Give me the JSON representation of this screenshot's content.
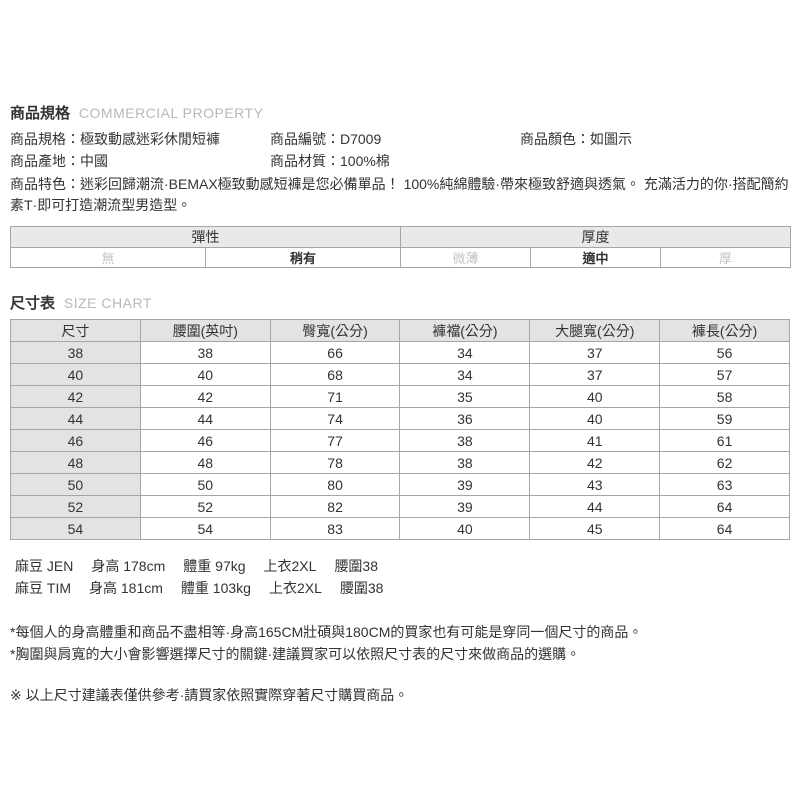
{
  "colon": "：",
  "product_section": {
    "title": "商品規格",
    "subtitle": "COMMERCIAL PROPERTY",
    "fields": {
      "spec": {
        "label": "商品規格",
        "value": "極致動感迷彩休閒短褲"
      },
      "code": {
        "label": "商品編號",
        "value": "D7009"
      },
      "color": {
        "label": "商品顏色",
        "value": "如圖示"
      },
      "origin": {
        "label": "商品產地",
        "value": "中國"
      },
      "material": {
        "label": "商品材質",
        "value": "100%棉"
      }
    },
    "feature": {
      "label": "商品特色",
      "value": "迷彩回歸潮流·BEMAX極致動感短褲是您必備單品！ 100%純綿體驗·帶來極致舒適與透氣。 充滿活力的你·搭配簡約素T·即可打造潮流型男造型。"
    }
  },
  "attribute_table": {
    "elasticity": {
      "header": "彈性",
      "options": [
        {
          "label": "無",
          "active": false
        },
        {
          "label": "稍有",
          "active": true
        }
      ]
    },
    "thickness": {
      "header": "厚度",
      "options": [
        {
          "label": "微薄",
          "active": false
        },
        {
          "label": "適中",
          "active": true
        },
        {
          "label": "厚",
          "active": false
        }
      ]
    }
  },
  "size_chart": {
    "title": "尺寸表",
    "subtitle": "SIZE CHART",
    "headers": [
      "尺寸",
      "腰圍(英吋)",
      "臀寬(公分)",
      "褲襠(公分)",
      "大腿寬(公分)",
      "褲長(公分)"
    ],
    "rows": [
      [
        "38",
        "38",
        "66",
        "34",
        "37",
        "56"
      ],
      [
        "40",
        "40",
        "68",
        "34",
        "37",
        "57"
      ],
      [
        "42",
        "42",
        "71",
        "35",
        "40",
        "58"
      ],
      [
        "44",
        "44",
        "74",
        "36",
        "40",
        "59"
      ],
      [
        "46",
        "46",
        "77",
        "38",
        "41",
        "61"
      ],
      [
        "48",
        "48",
        "78",
        "38",
        "42",
        "62"
      ],
      [
        "50",
        "50",
        "80",
        "39",
        "43",
        "63"
      ],
      [
        "52",
        "52",
        "82",
        "39",
        "44",
        "64"
      ],
      [
        "54",
        "54",
        "83",
        "40",
        "45",
        "64"
      ]
    ]
  },
  "models": [
    {
      "name": "麻豆 JEN",
      "height": "身高 178cm",
      "weight": "體重 97kg",
      "top": "上衣2XL",
      "waist": "腰圍38"
    },
    {
      "name": "麻豆 TIM",
      "height": "身高 181cm",
      "weight": "體重 103kg",
      "top": "上衣2XL",
      "waist": "腰圍38"
    }
  ],
  "notes": [
    "*每個人的身高體重和商品不盡相等·身高165CM壯碩與180CM的買家也有可能是穿同一個尺寸的商品。",
    "*胸圍與肩寬的大小會影響選擇尺寸的關鍵·建議買家可以依照尺寸表的尺寸來做商品的選購。"
  ],
  "disclaimer": "※ 以上尺寸建議表僅供參考·請買家依照實際穿著尺寸購買商品。",
  "colors": {
    "text": "#333333",
    "muted": "#b9b9b9",
    "inactive": "#c3c3c3",
    "border": "#a6a6a6",
    "header_bg": "#e3e3e3"
  }
}
